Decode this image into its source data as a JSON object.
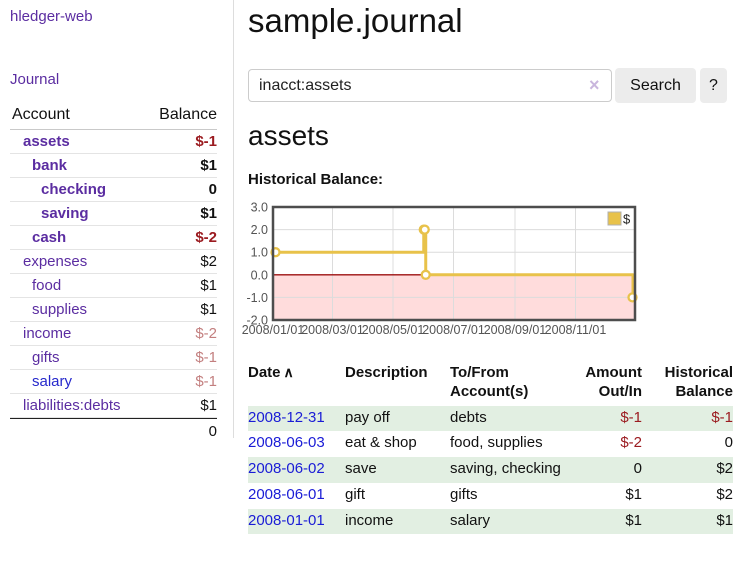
{
  "sidebar": {
    "brand": "hledger-web",
    "nav": [
      {
        "label": "Journal"
      }
    ],
    "table": {
      "headers": [
        "Account",
        "Balance"
      ],
      "rows": [
        {
          "name": "assets",
          "depth": 1,
          "bold": true,
          "name_color": "purple",
          "balance": "$-1",
          "balance_color": "neg"
        },
        {
          "name": "bank",
          "depth": 2,
          "bold": true,
          "name_color": "purple",
          "balance": "$1",
          "balance_color": "pos"
        },
        {
          "name": "checking",
          "depth": 3,
          "bold": true,
          "name_color": "purple",
          "balance": "0",
          "balance_color": "pos"
        },
        {
          "name": "saving",
          "depth": 3,
          "bold": true,
          "name_color": "purple",
          "balance": "$1",
          "balance_color": "pos"
        },
        {
          "name": "cash",
          "depth": 2,
          "bold": true,
          "name_color": "purple",
          "balance": "$-2",
          "balance_color": "neg"
        },
        {
          "name": "expenses",
          "depth": 1,
          "bold": false,
          "name_color": "purple",
          "balance": "$2",
          "balance_color": "pos"
        },
        {
          "name": "food",
          "depth": 2,
          "bold": false,
          "name_color": "purple",
          "balance": "$1",
          "balance_color": "pos"
        },
        {
          "name": "supplies",
          "depth": 2,
          "bold": false,
          "name_color": "purple",
          "balance": "$1",
          "balance_color": "pos"
        },
        {
          "name": "income",
          "depth": 1,
          "bold": false,
          "name_color": "purple",
          "balance": "$-2",
          "balance_color": "dimneg"
        },
        {
          "name": "gifts",
          "depth": 2,
          "bold": false,
          "name_color": "purple",
          "balance": "$-1",
          "balance_color": "dimneg"
        },
        {
          "name": "salary",
          "depth": 2,
          "bold": false,
          "name_color": "blue",
          "balance": "$-1",
          "balance_color": "dimneg"
        },
        {
          "name": "liabilities:debts",
          "depth": 1,
          "bold": false,
          "name_color": "purple",
          "balance": "$1",
          "balance_color": "pos"
        }
      ],
      "total": "0"
    }
  },
  "main": {
    "title": "sample.journal",
    "search": {
      "value": "inacct:assets",
      "clear_icon": "×",
      "button": "Search",
      "help_button": "?"
    },
    "heading": "assets",
    "chart_label": "Historical Balance:"
  },
  "chart_data": {
    "type": "line",
    "step": true,
    "title": "Historical Balance:",
    "series": [
      {
        "name": "$",
        "color": "#e8c24a",
        "points": [
          [
            "2008-01-01",
            1.0
          ],
          [
            "2008-06-01",
            2.0
          ],
          [
            "2008-06-02",
            2.0
          ],
          [
            "2008-06-03",
            0.0
          ],
          [
            "2008-12-31",
            -1.0
          ]
        ]
      }
    ],
    "x_ticks": [
      "2008/01/01",
      "2008/03/01",
      "2008/05/01",
      "2008/07/01",
      "2008/09/01",
      "2008/11/01"
    ],
    "y_ticks": [
      3.0,
      2.0,
      1.0,
      0.0,
      -1.0,
      -2.0
    ],
    "xlim": [
      "2008-01-01",
      "2008-12-31"
    ],
    "ylim": [
      -2.0,
      3.0
    ],
    "grid": true,
    "legend_position": "top-right",
    "negative_region_color": "#ffd6d6",
    "zero_line_color": "#9c0f0f"
  },
  "register": {
    "columns": [
      {
        "label": "Date",
        "sort": "∧",
        "align": "left"
      },
      {
        "label": "Description",
        "align": "left"
      },
      {
        "label": "To/From Account(s)",
        "align": "left"
      },
      {
        "label": "Amount Out/In",
        "align": "right"
      },
      {
        "label": "Historical Balance",
        "align": "right"
      }
    ],
    "rows": [
      {
        "date": "2008-12-31",
        "description": "pay off",
        "accounts": "debts",
        "amount": "$-1",
        "amount_neg": true,
        "balance": "$-1",
        "balance_neg": true
      },
      {
        "date": "2008-06-03",
        "description": "eat & shop",
        "accounts": "food, supplies",
        "amount": "$-2",
        "amount_neg": true,
        "balance": "0",
        "balance_neg": false
      },
      {
        "date": "2008-06-02",
        "description": "save",
        "accounts": "saving, checking",
        "amount": "0",
        "amount_neg": false,
        "balance": "$2",
        "balance_neg": false
      },
      {
        "date": "2008-06-01",
        "description": "gift",
        "accounts": "gifts",
        "amount": "$1",
        "amount_neg": false,
        "balance": "$2",
        "balance_neg": false
      },
      {
        "date": "2008-01-01",
        "description": "income",
        "accounts": "salary",
        "amount": "$1",
        "amount_neg": false,
        "balance": "$1",
        "balance_neg": false
      }
    ]
  },
  "colors": {
    "link_purple": "#5b2da1",
    "link_blue": "#2629cc",
    "date_link_blue": "#1a1cd6",
    "negative_red": "#9b1b20",
    "negative_dim_red": "#c37f7f",
    "row_stripe_green": "#e2efe2",
    "chart_gold": "#e8c24a",
    "chart_negative_pink": "#ffd6d6",
    "chart_zero_line": "#9c0f0f"
  }
}
